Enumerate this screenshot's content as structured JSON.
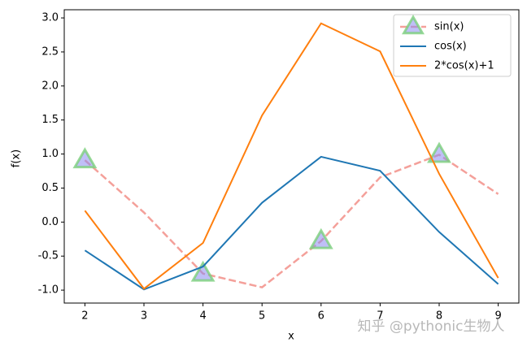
{
  "chart_data": {
    "type": "line",
    "x_label": "x",
    "y_label": "f(x)",
    "x": [
      2,
      3,
      4,
      5,
      6,
      7,
      8,
      9
    ],
    "series": [
      {
        "name": "sin(x)",
        "color": "#f4a09a",
        "linestyle": "dashed",
        "marker": "triangle",
        "marker_face": "#8a8af0",
        "marker_edge": "#7ccf7c",
        "markevery": 2,
        "values": [
          0.909,
          0.141,
          -0.757,
          -0.959,
          -0.279,
          0.657,
          0.989,
          0.412
        ]
      },
      {
        "name": "cos(x)",
        "color": "#1f77b4",
        "linestyle": "solid",
        "values": [
          -0.416,
          -0.99,
          -0.654,
          0.284,
          0.96,
          0.754,
          -0.146,
          -0.911
        ]
      },
      {
        "name": "2*cos(x)+1",
        "color": "#ff7f0e",
        "linestyle": "solid",
        "values": [
          0.168,
          -0.98,
          -0.307,
          1.567,
          2.92,
          2.508,
          0.709,
          -0.822
        ]
      }
    ],
    "xlim": [
      1.65,
      9.35
    ],
    "ylim": [
      -1.19,
      3.12
    ],
    "xticks": [
      2,
      3,
      4,
      5,
      6,
      7,
      8,
      9
    ],
    "yticks": [
      {
        "value": -1,
        "label": "-1.0"
      },
      -0.5,
      {
        "value": 0,
        "label": "0.0"
      },
      0.5,
      {
        "value": 1,
        "label": "1.0"
      },
      1.5,
      {
        "value": 2,
        "label": "2.0"
      },
      2.5,
      {
        "value": 3,
        "label": "3.0"
      }
    ],
    "legend": "upper right",
    "watermark": "知乎 @pythonic生物人"
  }
}
